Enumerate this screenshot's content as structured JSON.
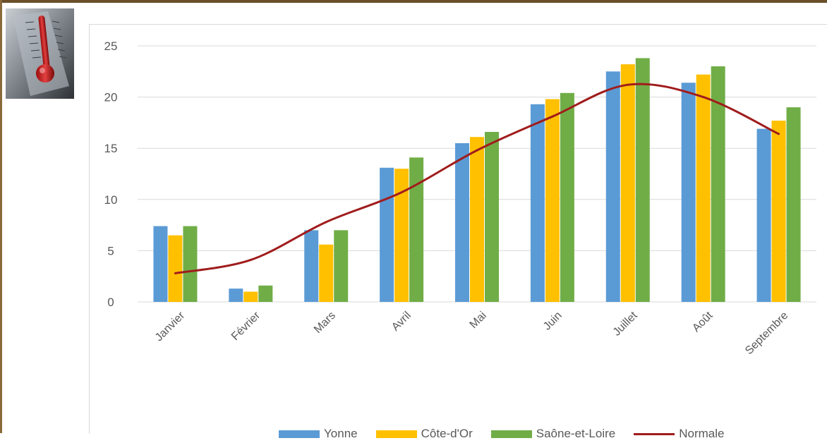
{
  "colors": {
    "yonne": "#5b9bd5",
    "cote_dor": "#ffc000",
    "saone_et_loire": "#70ad47",
    "normale": "#a01c1c",
    "grid": "#d9d9d9"
  },
  "icons": {
    "thermometer": "thermometer-icon"
  },
  "chart_data": {
    "type": "bar",
    "categories": [
      "Janvier",
      "Février",
      "Mars",
      "Avril",
      "Mai",
      "Juin",
      "Juillet",
      "Août",
      "Septembre"
    ],
    "series": [
      {
        "name": "Yonne",
        "values": [
          7.4,
          1.3,
          7.0,
          13.1,
          15.5,
          19.3,
          22.5,
          21.4,
          16.9
        ]
      },
      {
        "name": "Côte-d'Or",
        "values": [
          6.5,
          1.0,
          5.6,
          13.0,
          16.1,
          19.8,
          23.2,
          22.2,
          17.7
        ]
      },
      {
        "name": "Saône-et-Loire",
        "values": [
          7.4,
          1.6,
          7.0,
          14.1,
          16.6,
          20.4,
          23.8,
          23.0,
          19.0
        ]
      }
    ],
    "line_series": {
      "name": "Normale",
      "type": "line",
      "smooth": true,
      "values": [
        2.8,
        4.1,
        7.8,
        10.7,
        14.8,
        18.1,
        21.2,
        20.0,
        16.4
      ]
    },
    "ylim": [
      0,
      25
    ],
    "yticks": [
      0,
      5,
      10,
      15,
      20,
      25
    ],
    "grid": true,
    "legend_position": "bottom",
    "title": "",
    "xlabel": "",
    "ylabel": ""
  }
}
